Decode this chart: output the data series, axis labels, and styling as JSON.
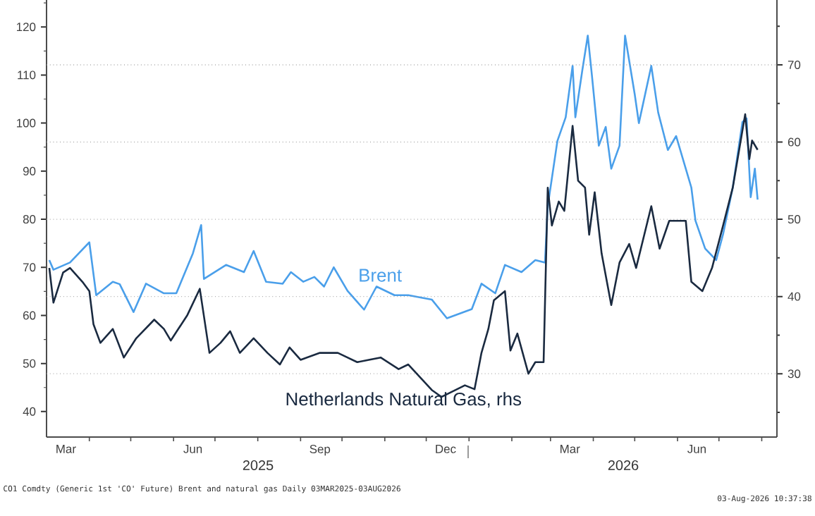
{
  "chart_data": {
    "type": "line",
    "xlim": [
      "2025-03-01",
      "2026-08-12"
    ],
    "xticks": [
      {
        "value": "2025-03-15",
        "label": "Mar"
      },
      {
        "value": "2025-06-15",
        "label": "Jun"
      },
      {
        "value": "2025-09-15",
        "label": "Sep"
      },
      {
        "value": "2025-12-15",
        "label": "Dec"
      },
      {
        "value": "2026-03-15",
        "label": "Mar"
      },
      {
        "value": "2026-06-15",
        "label": "Jun"
      },
      {
        "value": "2025-04-01",
        "label": null
      },
      {
        "value": "2025-05-01",
        "label": null
      },
      {
        "value": "2025-06-01",
        "label": null
      },
      {
        "value": "2025-07-01",
        "label": null
      },
      {
        "value": "2025-08-01",
        "label": null
      },
      {
        "value": "2025-09-01",
        "label": null
      },
      {
        "value": "2025-10-01",
        "label": null
      },
      {
        "value": "2025-11-01",
        "label": null
      },
      {
        "value": "2025-12-01",
        "label": null
      },
      {
        "value": "2026-01-01",
        "label": null
      },
      {
        "value": "2026-02-01",
        "label": null
      },
      {
        "value": "2026-03-01",
        "label": null
      },
      {
        "value": "2026-04-01",
        "label": null
      },
      {
        "value": "2026-05-01",
        "label": null
      },
      {
        "value": "2026-06-01",
        "label": null
      },
      {
        "value": "2026-07-01",
        "label": null
      },
      {
        "value": "2026-08-01",
        "label": null
      }
    ],
    "ylim": [
      34.7,
      125.6
    ],
    "yticks": [
      40,
      50,
      60,
      70,
      80,
      90,
      100,
      110,
      120,
      {
        "value": 45,
        "label": null
      },
      {
        "value": 55,
        "label": null
      },
      {
        "value": 65,
        "label": null
      },
      {
        "value": 75,
        "label": null
      },
      {
        "value": 85,
        "label": null
      },
      {
        "value": 95,
        "label": null
      },
      {
        "value": 105,
        "label": null
      },
      {
        "value": 115,
        "label": null
      },
      {
        "value": 125,
        "label": null
      }
    ],
    "y2lim": [
      21.8,
      78.4
    ],
    "y2ticks": [
      30,
      40,
      50,
      60,
      70,
      {
        "value": 25,
        "label": null
      },
      {
        "value": 35,
        "label": null
      },
      {
        "value": 45,
        "label": null
      },
      {
        "value": 55,
        "label": null
      },
      {
        "value": 65,
        "label": null
      },
      {
        "value": 75,
        "label": null
      }
    ],
    "grid": "y",
    "marker": "none",
    "line_style": "solid",
    "annotations": [
      "2025",
      "2026",
      "CO1 Comdty (Generic 1st 'CO' Future) Brent and natural gas Daily 03MAR2025-03AUG2026",
      "03-Aug-2026 10:37:38"
    ],
    "series": [
      {
        "name": "Brent",
        "color": "#4a9fea",
        "x": [
          "2025-03-03",
          "2025-03-06",
          "2025-03-18",
          "2025-04-01",
          "2025-04-06",
          "2025-04-18",
          "2025-04-23",
          "2025-05-03",
          "2025-05-12",
          "2025-05-25",
          "2025-06-03",
          "2025-06-15",
          "2025-06-21",
          "2025-06-23",
          "2025-07-09",
          "2025-07-22",
          "2025-07-29",
          "2025-08-07",
          "2025-08-19",
          "2025-08-25",
          "2025-09-03",
          "2025-09-11",
          "2025-09-18",
          "2025-09-25",
          "2025-10-05",
          "2025-10-17",
          "2025-10-26",
          "2025-11-08",
          "2025-11-18",
          "2025-12-05",
          "2025-12-16",
          "2026-01-03",
          "2026-01-10",
          "2026-01-20",
          "2026-01-27",
          "2026-02-08",
          "2026-02-18",
          "2026-02-25",
          "2026-02-27",
          "2026-03-06",
          "2026-03-12",
          "2026-03-17",
          "2026-03-19",
          "2026-03-24",
          "2026-03-28",
          "2026-03-31",
          "2026-04-05",
          "2026-04-10",
          "2026-04-14",
          "2026-04-20",
          "2026-04-24",
          "2026-05-01",
          "2026-05-04",
          "2026-05-13",
          "2026-05-18",
          "2026-05-25",
          "2026-05-31",
          "2026-06-11",
          "2026-06-14",
          "2026-06-21",
          "2026-06-29",
          "2026-07-04",
          "2026-07-11",
          "2026-07-18",
          "2026-07-21",
          "2026-07-24",
          "2026-07-27",
          "2026-07-29"
        ],
        "values": [
          71.5,
          69.5,
          71,
          75.2,
          64.2,
          67,
          66.5,
          60.7,
          66.6,
          64.6,
          64.6,
          72.9,
          78.8,
          67.6,
          70.5,
          69,
          73.4,
          67,
          66.6,
          69,
          67,
          68,
          66,
          70,
          65.1,
          61.2,
          66,
          64.2,
          64.2,
          63.3,
          59.4,
          61.3,
          66.6,
          64.6,
          70.5,
          69,
          71.5,
          71,
          82.7,
          96.3,
          101.2,
          111.9,
          101.2,
          110.9,
          118.2,
          109.9,
          95.3,
          99.2,
          90.5,
          95.3,
          118.2,
          106,
          100,
          111.9,
          102.2,
          94.4,
          97.3,
          86.6,
          79.7,
          73.9,
          71.5,
          76.9,
          86.6,
          100.2,
          101,
          84.6,
          90.5,
          84.1
        ]
      },
      {
        "name": "Netherlands Natural Gas, rhs",
        "color": "#1a2a40",
        "axis": "y2",
        "x": [
          "2025-03-03",
          "2025-03-06",
          "2025-03-13",
          "2025-03-18",
          "2025-03-27",
          "2025-04-01",
          "2025-04-04",
          "2025-04-09",
          "2025-04-18",
          "2025-04-26",
          "2025-05-05",
          "2025-05-18",
          "2025-05-25",
          "2025-05-30",
          "2025-06-11",
          "2025-06-20",
          "2025-06-27",
          "2025-07-05",
          "2025-07-12",
          "2025-07-19",
          "2025-07-29",
          "2025-08-08",
          "2025-08-17",
          "2025-08-24",
          "2025-09-01",
          "2025-09-15",
          "2025-09-28",
          "2025-10-12",
          "2025-10-29",
          "2025-11-11",
          "2025-11-18",
          "2025-12-05",
          "2025-12-12",
          "2025-12-29",
          "2026-01-05",
          "2026-01-10",
          "2026-01-15",
          "2026-01-19",
          "2026-01-27",
          "2026-01-31",
          "2026-02-05",
          "2026-02-13",
          "2026-02-18",
          "2026-02-24",
          "2026-02-27",
          "2026-03-02",
          "2026-03-07",
          "2026-03-11",
          "2026-03-17",
          "2026-03-21",
          "2026-03-26",
          "2026-03-29",
          "2026-04-02",
          "2026-04-07",
          "2026-04-14",
          "2026-04-20",
          "2026-04-27",
          "2026-05-02",
          "2026-05-13",
          "2026-05-19",
          "2026-05-26",
          "2026-06-07",
          "2026-06-11",
          "2026-06-19",
          "2026-06-26",
          "2026-07-04",
          "2026-07-11",
          "2026-07-20",
          "2026-07-23",
          "2026-07-25",
          "2026-07-29"
        ],
        "values": [
          43.7,
          39.2,
          43.1,
          43.7,
          41.9,
          40.7,
          36.4,
          34,
          35.8,
          32.1,
          34.6,
          37,
          35.8,
          34.3,
          37.6,
          41,
          32.7,
          34,
          35.5,
          32.7,
          34.6,
          32.7,
          31.2,
          33.4,
          31.8,
          32.7,
          32.7,
          31.5,
          32.1,
          30.6,
          31.2,
          27.9,
          27,
          28.5,
          28,
          32.7,
          35.8,
          39.5,
          40.7,
          33,
          35.2,
          30,
          31.5,
          31.5,
          54.1,
          49.2,
          52.3,
          51.1,
          62.1,
          55,
          54.1,
          48,
          53.5,
          45.6,
          38.9,
          44.4,
          46.8,
          43.7,
          51.7,
          46.2,
          49.8,
          49.8,
          41.9,
          40.7,
          43.7,
          49.2,
          54.1,
          63.6,
          57.8,
          60.2,
          59
        ]
      }
    ]
  }
}
